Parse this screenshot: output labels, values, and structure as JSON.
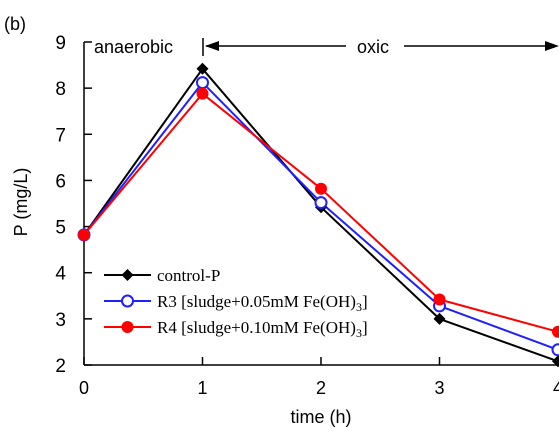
{
  "chart_data": {
    "type": "line",
    "panel_label": "(b)",
    "phases": {
      "anaerobic": "anaerobic",
      "oxic": "oxic"
    },
    "xlabel": "time (h)",
    "ylabel": "P (mg/L)",
    "x": [
      0,
      1,
      2,
      3,
      4
    ],
    "xlim": [
      0,
      4
    ],
    "ylim": [
      2,
      9
    ],
    "x_ticks": [
      "0",
      "1",
      "2",
      "3",
      "4"
    ],
    "y_ticks": [
      "2",
      "3",
      "4",
      "5",
      "6",
      "7",
      "8",
      "9"
    ],
    "grid": false,
    "legend_position": "bottom-left",
    "series": [
      {
        "name": "control-P",
        "values": [
          4.82,
          8.42,
          5.42,
          3.0,
          2.08
        ],
        "color": "#000000",
        "marker": "diamond-filled"
      },
      {
        "name": "R3 [sludge+0.05mM Fe(OH)3]",
        "values": [
          4.82,
          8.12,
          5.52,
          3.28,
          2.33
        ],
        "color": "#1f1fff",
        "marker": "circle-open"
      },
      {
        "name": "R4 [sludge+0.10mM Fe(OH)3]",
        "values": [
          4.82,
          7.88,
          5.82,
          3.42,
          2.72
        ],
        "color": "#ff0000",
        "marker": "circle-filled"
      }
    ]
  },
  "legend": {
    "control_label": "control-P",
    "r3": {
      "main": "R3 [sludge+0.05mM Fe(OH)",
      "sub": "3",
      "tail": "]"
    },
    "r4": {
      "main": "R4 [sludge+0.10mM Fe(OH)",
      "sub": "3",
      "tail": "]"
    }
  }
}
